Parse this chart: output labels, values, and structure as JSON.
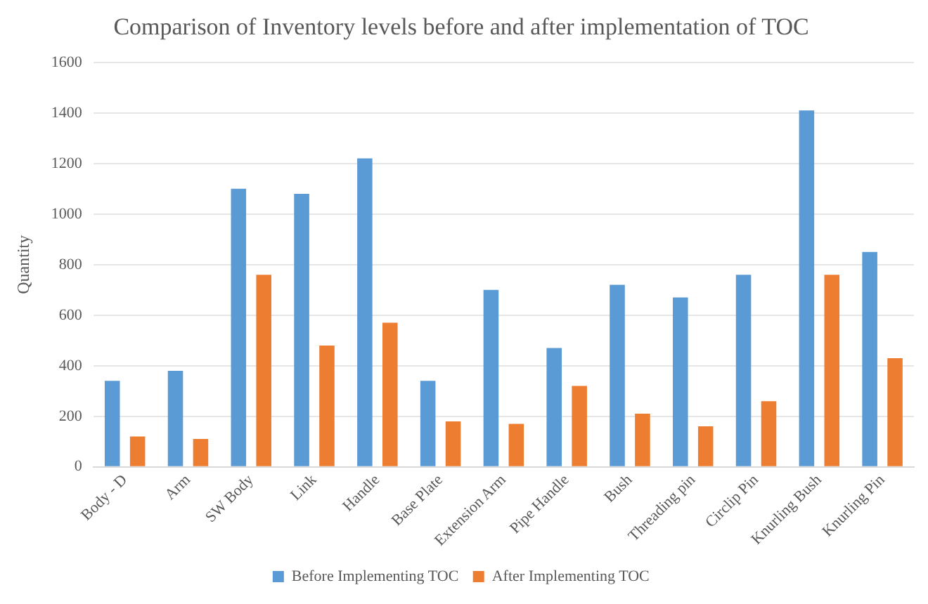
{
  "chart_data": {
    "type": "bar",
    "title": "Comparison of Inventory levels before and after implementation of TOC",
    "ylabel": "Quantity",
    "categories": [
      "Body - D",
      "Arm",
      "SW Body",
      "Link",
      "Handle",
      "Base Plate",
      "Extension Arm",
      "Pipe Handle",
      "Bush",
      "Threading pin",
      "Circlip Pin",
      "Knurling Bush",
      "Knurling Pin"
    ],
    "series": [
      {
        "name": "Before Implementing TOC",
        "color": "#5b9bd5",
        "values": [
          340,
          380,
          1100,
          1080,
          1220,
          340,
          700,
          470,
          720,
          670,
          760,
          1410,
          850
        ]
      },
      {
        "name": "After Implementing TOC",
        "color": "#ed7d31",
        "values": [
          120,
          110,
          760,
          480,
          570,
          180,
          170,
          320,
          210,
          160,
          260,
          760,
          430
        ]
      }
    ],
    "ylim": [
      0,
      1600
    ],
    "yticks": [
      0,
      200,
      400,
      600,
      800,
      1000,
      1200,
      1400,
      1600
    ],
    "grid": "y",
    "legend": "bottom"
  }
}
